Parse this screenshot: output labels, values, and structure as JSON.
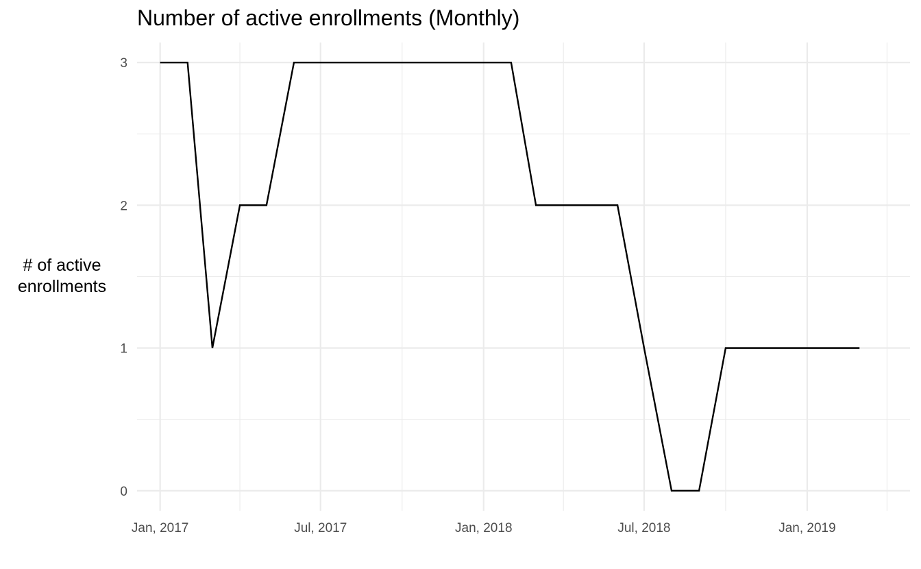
{
  "chart_data": {
    "type": "line",
    "title": "Number of active enrollments (Monthly)",
    "xlabel": "",
    "ylabel": "# of active\nenrollments",
    "x": [
      "2017-01",
      "2017-02",
      "2017-03",
      "2017-04",
      "2017-05",
      "2017-06",
      "2017-07",
      "2017-08",
      "2017-09",
      "2017-10",
      "2017-11",
      "2017-12",
      "2018-01",
      "2018-02",
      "2018-03",
      "2018-04",
      "2018-05",
      "2018-06",
      "2018-07",
      "2018-08",
      "2018-09",
      "2018-10",
      "2018-11",
      "2018-12",
      "2019-01",
      "2019-02",
      "2019-03"
    ],
    "series": [
      {
        "values": [
          3,
          3,
          1,
          2,
          2,
          3,
          3,
          3,
          3,
          3,
          3,
          3,
          3,
          3,
          2,
          2,
          2,
          2,
          1,
          0,
          0,
          1,
          1,
          1,
          1,
          1,
          1
        ],
        "color": "#000000"
      }
    ],
    "x_ticks": [
      "Jan, 2017",
      "Jul, 2017",
      "Jan, 2018",
      "Jul, 2018",
      "Jan, 2019"
    ],
    "y_ticks": [
      0,
      1,
      2,
      3
    ],
    "ylim": [
      -0.14,
      3.14
    ],
    "xlim": [
      "2016-12-06",
      "2019-04-27"
    ],
    "grid": true,
    "legend": "none",
    "grid_color": "#ebebeb",
    "text_color": "#4d4d4d"
  }
}
